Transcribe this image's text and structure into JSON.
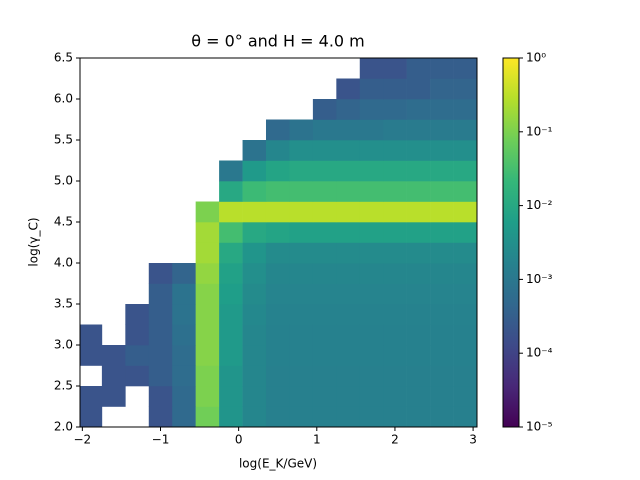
{
  "chart_data": {
    "type": "heatmap",
    "title": "θ = 0° and H = 4.0 m",
    "xlabel": "log(E_K/GeV)",
    "ylabel": "log(γ_C)",
    "xlim": [
      -2.03,
      3.05
    ],
    "ylim": [
      2.0,
      6.5
    ],
    "xticks": [
      {
        "value": -2,
        "label": "−2"
      },
      {
        "value": -1,
        "label": "−1"
      },
      0,
      1,
      2,
      3
    ],
    "yticks": [
      {
        "value": 2.0,
        "label": "2.0"
      },
      2.5,
      {
        "value": 3.0,
        "label": "3.0"
      },
      3.5,
      {
        "value": 4.0,
        "label": "4.0"
      },
      4.5,
      {
        "value": 5.0,
        "label": "5.0"
      },
      5.5,
      {
        "value": 6.0,
        "label": "6.0"
      },
      6.5
    ],
    "colorscale": "viridis",
    "log_color": true,
    "clim": [
      1e-05,
      1
    ],
    "cticks": [
      {
        "value": 1e-05,
        "label": "10⁻⁵"
      },
      {
        "value": 0.0001,
        "label": "10⁻⁴"
      },
      {
        "value": 0.001,
        "label": "10⁻³"
      },
      {
        "value": 0.01,
        "label": "10⁻²"
      },
      {
        "value": 0.1,
        "label": "10⁻¹"
      },
      {
        "value": 1,
        "label": "10⁰"
      }
    ],
    "xbins": [
      -2.05,
      -1.75,
      -1.45,
      -1.15,
      -0.85,
      -0.55,
      -0.25,
      0.05,
      0.35,
      0.65,
      0.95,
      1.25,
      1.55,
      1.85,
      2.15,
      2.45,
      2.75,
      3.05
    ],
    "ybins": [
      2.0,
      2.25,
      2.5,
      2.75,
      3.0,
      3.25,
      3.5,
      3.75,
      4.0,
      4.25,
      4.5,
      4.75,
      5.0,
      5.25,
      5.5,
      5.75,
      6.0,
      6.25,
      6.5
    ],
    "z": [
      [
        0.0002,
        null,
        null,
        0.0002,
        0.0005,
        0.08,
        0.004,
        0.002,
        0.0015,
        0.0015,
        0.0015,
        0.0015,
        0.0015,
        0.0015,
        0.0015,
        0.0015,
        0.0015
      ],
      [
        0.0002,
        0.0002,
        null,
        0.0002,
        0.0005,
        0.1,
        0.004,
        0.002,
        0.0015,
        0.0015,
        0.0015,
        0.0015,
        0.0015,
        0.0015,
        0.0015,
        0.0015,
        0.0015
      ],
      [
        null,
        0.0002,
        0.0002,
        0.0003,
        0.0006,
        0.1,
        0.004,
        0.002,
        0.0015,
        0.0015,
        0.0015,
        0.0015,
        0.0015,
        0.0015,
        0.0015,
        0.0015,
        0.0015
      ],
      [
        0.0002,
        0.0002,
        0.0003,
        0.0003,
        0.0006,
        0.12,
        0.005,
        0.002,
        0.0016,
        0.0016,
        0.0016,
        0.0016,
        0.0016,
        0.0016,
        0.0016,
        0.0016,
        0.0016
      ],
      [
        0.0002,
        null,
        0.0002,
        0.0003,
        0.0007,
        0.12,
        0.005,
        0.002,
        0.0016,
        0.0016,
        0.0016,
        0.0016,
        0.0016,
        0.0016,
        0.0016,
        0.0016,
        0.0016
      ],
      [
        null,
        null,
        0.0002,
        0.0003,
        0.0008,
        0.12,
        0.005,
        0.0022,
        0.0017,
        0.0017,
        0.0017,
        0.0017,
        0.0017,
        0.0017,
        0.0017,
        0.0017,
        0.0017
      ],
      [
        null,
        null,
        null,
        0.0003,
        0.0008,
        0.12,
        0.006,
        0.0025,
        0.0018,
        0.0018,
        0.0018,
        0.0018,
        0.0018,
        0.0018,
        0.0018,
        0.0018,
        0.0018
      ],
      [
        null,
        null,
        null,
        0.0002,
        0.0004,
        0.15,
        0.007,
        0.003,
        0.002,
        0.002,
        0.002,
        0.002,
        0.002,
        0.002,
        0.002,
        0.002,
        0.002
      ],
      [
        null,
        null,
        null,
        null,
        null,
        0.2,
        0.01,
        0.004,
        0.0025,
        0.0025,
        0.0025,
        0.0025,
        0.0025,
        0.0025,
        0.0025,
        0.0025,
        0.0025
      ],
      [
        null,
        null,
        null,
        null,
        null,
        0.2,
        0.03,
        0.01,
        0.008,
        0.007,
        0.007,
        0.007,
        0.007,
        0.007,
        0.007,
        0.007,
        0.007
      ],
      [
        null,
        null,
        null,
        null,
        null,
        0.1,
        0.3,
        0.3,
        0.3,
        0.3,
        0.3,
        0.3,
        0.3,
        0.3,
        0.3,
        0.3,
        0.3
      ],
      [
        null,
        null,
        null,
        null,
        null,
        null,
        0.01,
        0.025,
        0.03,
        0.03,
        0.03,
        0.03,
        0.03,
        0.03,
        0.03,
        0.03,
        0.03
      ],
      [
        null,
        null,
        null,
        null,
        null,
        null,
        0.001,
        0.005,
        0.008,
        0.01,
        0.01,
        0.01,
        0.01,
        0.01,
        0.01,
        0.01,
        0.01
      ],
      [
        null,
        null,
        null,
        null,
        null,
        null,
        null,
        0.0008,
        0.002,
        0.003,
        0.003,
        0.003,
        0.003,
        0.003,
        0.003,
        0.003,
        0.003
      ],
      [
        null,
        null,
        null,
        null,
        null,
        null,
        null,
        null,
        0.0005,
        0.0008,
        0.001,
        0.001,
        0.001,
        0.0012,
        0.0012,
        0.0012,
        0.0012
      ],
      [
        null,
        null,
        null,
        null,
        null,
        null,
        null,
        null,
        null,
        null,
        0.0003,
        0.0004,
        0.0005,
        0.0005,
        0.0006,
        0.0006,
        0.0006
      ],
      [
        null,
        null,
        null,
        null,
        null,
        null,
        null,
        null,
        null,
        null,
        null,
        0.0002,
        0.0003,
        0.0003,
        0.0003,
        0.0004,
        0.0004
      ],
      [
        null,
        null,
        null,
        null,
        null,
        null,
        null,
        null,
        null,
        null,
        null,
        null,
        0.0002,
        0.0002,
        0.0003,
        0.0003,
        0.0003
      ]
    ]
  }
}
